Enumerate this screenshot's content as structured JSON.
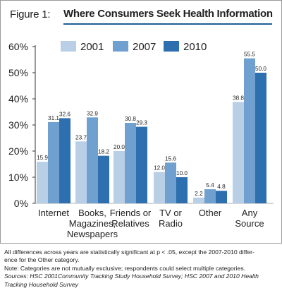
{
  "figure": {
    "label": "Figure 1:",
    "title": "Where Consumers Seek Health Information"
  },
  "colors": {
    "s2001": "#b8cfe6",
    "s2007": "#6fa0d0",
    "s2010": "#2e6fb0",
    "title_rule": "#1d5e94",
    "axis": "#333333"
  },
  "chart_data": {
    "type": "bar",
    "title": "Where Consumers Seek Health Information",
    "categories": [
      [
        "Internet"
      ],
      [
        "Books,",
        "Magazines,",
        "Newspapers"
      ],
      [
        "Friends or",
        "Relatives"
      ],
      [
        "TV or",
        "Radio"
      ],
      [
        "Other"
      ],
      [
        "Any",
        "Source"
      ]
    ],
    "series": [
      {
        "name": "2001",
        "values": [
          15.9,
          23.7,
          20.0,
          12.0,
          2.2,
          38.8
        ]
      },
      {
        "name": "2007",
        "values": [
          31.1,
          32.9,
          30.8,
          15.6,
          5.4,
          55.5
        ]
      },
      {
        "name": "2010",
        "values": [
          32.6,
          18.2,
          29.3,
          10.0,
          4.8,
          50.0
        ]
      }
    ],
    "data_labels": [
      [
        "15.9",
        "23.7",
        "20.0",
        "12.0",
        "2.2",
        "38.8"
      ],
      [
        "31.1",
        "32.9",
        "30.8",
        "15.6",
        "5.4",
        "55.5"
      ],
      [
        "32.6",
        "18.2",
        "29.3",
        "10.0",
        "4.8",
        "50.0"
      ]
    ],
    "yticks": [
      "0%",
      "10%",
      "20%",
      "30%",
      "40%",
      "50%",
      "60%"
    ],
    "ylim": [
      0,
      60
    ],
    "legend_position": "top-center",
    "grid": false
  },
  "notes": {
    "line1": "All differences across years are statistically significant at p < .05, except the 2007-2010 differ-",
    "line2": "ence for the Other category.",
    "line3": "Note: Categories are not mutually exclusive; respondents could select multiple categories.",
    "line4": "Sources: HSC 2001Community Tracking Study Household Survey; HSC 2007 and 2010 Health",
    "line5": "Tracking Household Survey"
  }
}
